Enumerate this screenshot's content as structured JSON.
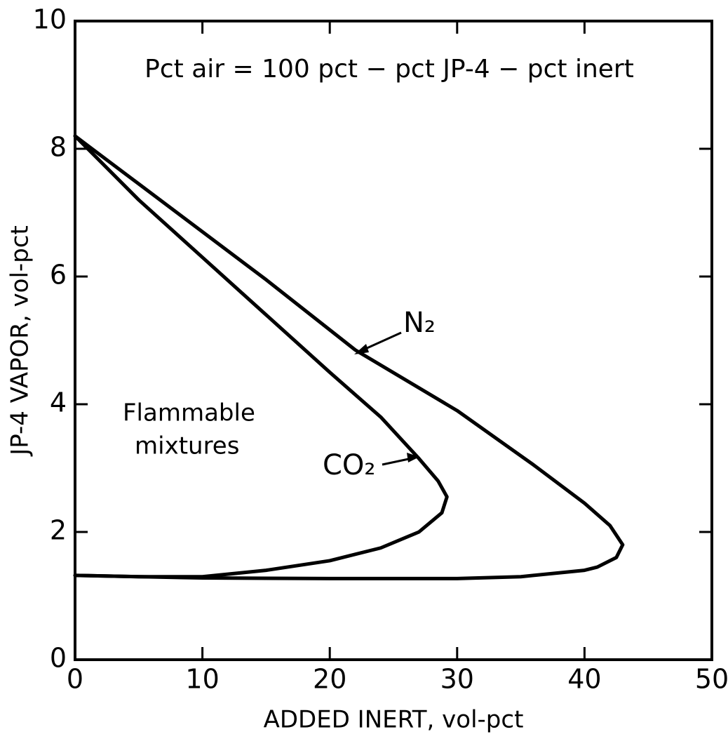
{
  "chart_data": {
    "type": "line",
    "annotation": "Pct air = 100 pct − pct JP-4 − pct inert",
    "region_label": [
      "Flammable",
      "mixtures"
    ],
    "x_label": "ADDED INERT, vol-pct",
    "y_label": "JP-4 VAPOR, vol-pct",
    "xlim": [
      0,
      50
    ],
    "ylim": [
      0,
      10
    ],
    "xticks": [
      0,
      10,
      20,
      30,
      40,
      50
    ],
    "yticks": [
      0,
      2,
      4,
      6,
      8,
      10
    ],
    "grid": false,
    "series": [
      {
        "name": "N₂",
        "color": "#000000",
        "x": [
          0,
          5,
          10,
          15,
          22,
          30,
          36,
          40,
          42,
          43,
          42.5,
          41,
          40,
          35,
          30,
          20,
          10,
          0
        ],
        "values": [
          8.2,
          7.45,
          6.7,
          5.95,
          4.85,
          3.9,
          3.05,
          2.45,
          2.1,
          1.8,
          1.6,
          1.45,
          1.4,
          1.3,
          1.27,
          1.27,
          1.28,
          1.32
        ]
      },
      {
        "name": "CO₂",
        "color": "#000000",
        "x": [
          0,
          5,
          10,
          15,
          20,
          24,
          27,
          28.5,
          29.2,
          28.8,
          27,
          24,
          20,
          15,
          10,
          5,
          0
        ],
        "values": [
          8.2,
          7.2,
          6.3,
          5.4,
          4.5,
          3.8,
          3.15,
          2.8,
          2.55,
          2.3,
          2.0,
          1.75,
          1.55,
          1.4,
          1.3,
          1.3,
          1.32
        ]
      }
    ],
    "series_label_pos": [
      [
        22,
        4.85
      ],
      [
        27,
        3.15
      ]
    ]
  }
}
